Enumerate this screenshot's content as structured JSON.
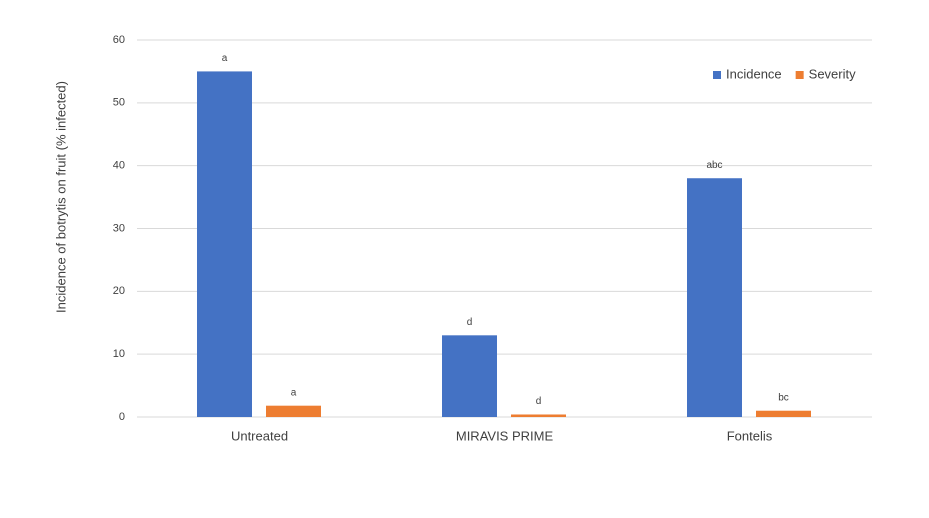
{
  "chart_data": {
    "type": "bar",
    "y_label": "Incidence of botrytis on fruit (% infected)",
    "categories": [
      "Untreated",
      "MIRAVIS PRIME",
      "Fontelis"
    ],
    "series": [
      {
        "name": "Incidence",
        "color": "#4472c4",
        "values": [
          55,
          13,
          38
        ],
        "letters": [
          "a",
          "d",
          "abc"
        ]
      },
      {
        "name": "Severity",
        "color": "#ed7d31",
        "values": [
          1.8,
          0.4,
          1.0
        ],
        "letters": [
          "a",
          "d",
          "bc"
        ]
      }
    ],
    "ylim": [
      0,
      60
    ],
    "yticks": [
      0,
      10,
      20,
      30,
      40,
      50,
      60
    ],
    "grid": true,
    "legend": "top-right"
  }
}
